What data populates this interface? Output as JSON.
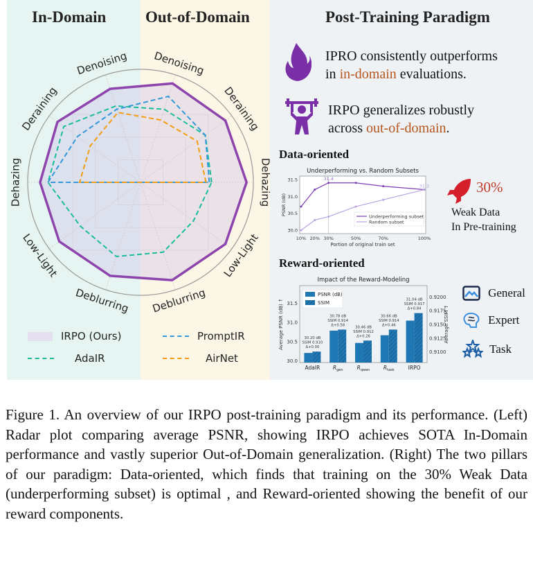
{
  "headers": {
    "in_domain": "In-Domain",
    "out_domain": "Out-of-Domain",
    "right": "Post-Training Paradigm"
  },
  "highlights": [
    {
      "icon": "fire-icon",
      "pre": "IPRO consistently outperforms",
      "line2_pre": "in ",
      "accent": "in-domain",
      "line2_post": " evaluations."
    },
    {
      "icon": "weightlifter-icon",
      "pre": "IRPO generalizes robustly",
      "line2_pre": "across ",
      "accent": "out-of-domain",
      "line2_post": "."
    }
  ],
  "data_oriented": {
    "title": "Data-oriented",
    "stat": "30%",
    "stat_label_1": "Weak Data",
    "stat_label_2": "In Pre-training"
  },
  "reward_oriented": {
    "title": "Reward-oriented",
    "components": [
      "General",
      "Expert",
      "Task"
    ]
  },
  "legend": {
    "irpo": "IRPO (Ours)",
    "adair": "AdaIR",
    "promptir": "PromptIR",
    "airnet": "AirNet"
  },
  "colors": {
    "irpo": "#8e44ad",
    "adair": "#1abc9c",
    "promptir": "#3498db",
    "airnet": "#f39c12",
    "accent": "#b5541c",
    "bar": "#1f77b4"
  },
  "caption": "Figure 1. An overview of our IRPO post-training paradigm and its performance. (Left) Radar plot comparing average PSNR, showing IRPO achieves SOTA In-Domain performance and vastly superior Out-of-Domain generalization. (Right) The two pillars of our paradigm: Data-oriented, which finds that training on the 30% Weak Data (underperforming subset) is optimal , and Reward-oriented showing the benefit of our reward components.",
  "chart_data": [
    {
      "type": "radar",
      "axes": [
        "Denoising",
        "Deraining",
        "Dehazing",
        "Low-Light",
        "Deblurring",
        "Denoising",
        "Deraining",
        "Dehazing",
        "Low-Light",
        "Deblurring"
      ],
      "axis_domain": [
        "in",
        "in",
        "in",
        "in",
        "in",
        "out",
        "out",
        "out",
        "out",
        "out"
      ],
      "value_scale": "normalized 0-1",
      "series": [
        {
          "name": "IRPO (Ours)",
          "values": [
            0.87,
            0.91,
            0.89,
            0.89,
            0.87,
            0.92,
            0.93,
            0.94,
            0.93,
            0.91
          ]
        },
        {
          "name": "AdaIR",
          "values": [
            0.71,
            0.84,
            0.82,
            0.66,
            0.69,
            0.68,
            0.71,
            0.63,
            0.58,
            0.65
          ]
        },
        {
          "name": "PromptIR",
          "values": [
            0.68,
            0.69,
            0.82,
            0,
            0,
            0.8,
            0.71,
            0.61,
            0,
            0
          ]
        },
        {
          "name": "AirNet",
          "values": [
            0.65,
            0.55,
            0.54,
            0,
            0,
            0.58,
            0.62,
            0.58,
            0,
            0
          ]
        }
      ]
    },
    {
      "type": "line",
      "title": "Underperforming vs. Random Subsets",
      "xlabel": "Portion of original train set",
      "ylabel": "PSNR (dB)",
      "x": [
        10,
        20,
        30,
        50,
        70,
        100
      ],
      "xtick_labels": [
        "10%",
        "20%",
        "30%",
        "50%",
        "70%",
        "100%"
      ],
      "ylim": [
        29.9,
        31.6
      ],
      "yticks": [
        30.0,
        30.5,
        31.0,
        31.5
      ],
      "series": [
        {
          "name": "Underperforming subset",
          "values": [
            30.7,
            31.2,
            31.4,
            31.4,
            31.3,
            31.2
          ]
        },
        {
          "name": "Random subset",
          "values": [
            30.0,
            30.3,
            30.4,
            30.7,
            30.9,
            31.2
          ]
        }
      ],
      "annotations": [
        "31.4",
        "31.2"
      ],
      "legend": "lower-right"
    },
    {
      "type": "bar",
      "title": "Impact of the Reward-Modeling",
      "categories": [
        "AdaIR",
        "R_gen",
        "R_qwen",
        "R_task",
        "IRPO"
      ],
      "category_labels": [
        {
          "main": "AdaIR",
          "sub": ""
        },
        {
          "main": "R",
          "sub": "gen"
        },
        {
          "main": "R",
          "sub": "qwen"
        },
        {
          "main": "R",
          "sub": "task"
        },
        {
          "main": "IRPO",
          "sub": ""
        }
      ],
      "ylabel": "Average PSNR (dB) ↑",
      "y2label": "Average SSIM ↑",
      "ylim": [
        29.95,
        31.95
      ],
      "yticks": [
        "30.0",
        "30.5",
        "31.0",
        "31.5"
      ],
      "y2lim": [
        0.908,
        0.922
      ],
      "y2ticks": [
        "0.9100",
        "0.9125",
        "0.9150",
        "0.9175",
        "0.9200"
      ],
      "series": [
        {
          "name": "PSNR (dB)",
          "values": [
            30.2,
            30.78,
            30.46,
            30.66,
            31.04
          ]
        },
        {
          "name": "SSIM",
          "values": [
            0.91,
            0.914,
            0.912,
            0.914,
            0.917
          ]
        }
      ],
      "annotations": [
        [
          "30.20 dB",
          "SSIM 0.910",
          "Δ+0.00"
        ],
        [
          "30.78 dB",
          "SSIM 0.914",
          "Δ+0.58"
        ],
        [
          "30.46 dB",
          "SSIM 0.912",
          "Δ+0.26"
        ],
        [
          "30.66 dB",
          "SSIM 0.914",
          "Δ+0.46"
        ],
        [
          "31.04 dB",
          "SSIM 0.917",
          "Δ+0.84"
        ]
      ],
      "legend": "top-left"
    }
  ]
}
